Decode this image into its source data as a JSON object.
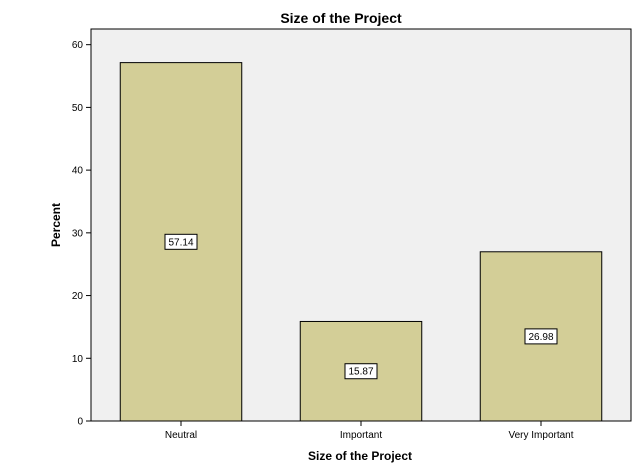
{
  "chart_data": {
    "type": "bar",
    "title": "Size of the Project",
    "xlabel": "Size of the Project",
    "ylabel": "Percent",
    "categories": [
      "Neutral",
      "Important",
      "Very Important"
    ],
    "values": [
      57.14,
      15.87,
      26.98
    ],
    "data_labels": [
      "57.14",
      "15.87",
      "26.98"
    ],
    "ylim": [
      0,
      62.5
    ],
    "yticks": [
      0,
      10,
      20,
      30,
      40,
      50,
      60
    ],
    "grid": false,
    "colors": {
      "bar_fill": "#d3ce97",
      "bar_stroke": "#000000",
      "plot_background": "#f0f0f0"
    }
  }
}
